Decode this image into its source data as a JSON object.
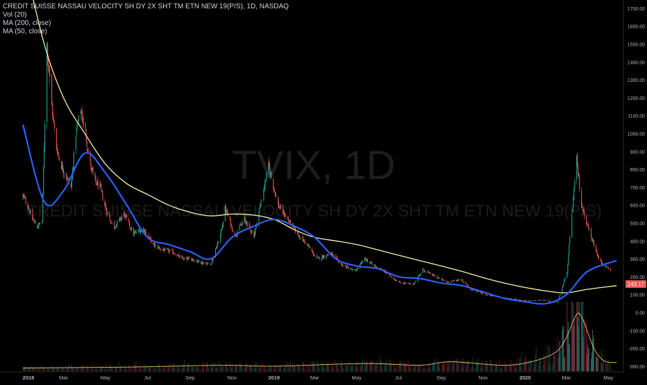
{
  "legend": {
    "title": "CREDIT SUISSE NASSAU VELOCITY SH DY 2X SHT TM ETN NEW 19(P/S), 1D, NASDAQ",
    "indicators": [
      "Vol (20)",
      "MA (200, close)",
      "MA (50, close)"
    ]
  },
  "watermark": {
    "symbol": "TVIX, 1D",
    "description": "CREDIT SUISSE NASSAU VELOCITY SH DY 2X SHT TM ETN NEW 19(P/S)"
  },
  "colors": {
    "background": "#000000",
    "up": "#26a69a",
    "down": "#ef5350",
    "ma50": "#2962ff",
    "ma200": "#fff2b0",
    "volume_ma": "#e3c26c",
    "price_tag": "#ef5350"
  },
  "chart_data": {
    "type": "candlestick",
    "price_axis": {
      "ticks": [
        "1700.00",
        "1600.00",
        "1500.00",
        "1400.00",
        "1300.00",
        "1200.00",
        "1100.00",
        "1000.00",
        "900.00",
        "800.00",
        "700.00",
        "600.00",
        "500.00",
        "400.00",
        "300.00",
        "200.00",
        "100.00",
        "0.00",
        "-100.00",
        "-200.00",
        "-300.00"
      ],
      "range": [
        -330,
        1760
      ]
    },
    "time_axis": {
      "ticks": [
        "2018",
        "Mar",
        "May",
        "Jul",
        "Sep",
        "Nov",
        "2019",
        "Mar",
        "May",
        "Jul",
        "Sep",
        "Nov",
        "2020",
        "Mar",
        "May"
      ],
      "range": [
        "2018-01-01",
        "2020-05-13"
      ]
    },
    "last_price": "143.17",
    "close_series": [
      [
        "2018-01-01",
        650
      ],
      [
        "2018-01-08",
        600
      ],
      [
        "2018-01-15",
        520
      ],
      [
        "2018-01-22",
        480
      ],
      [
        "2018-01-29",
        510
      ],
      [
        "2018-02-05",
        1500
      ],
      [
        "2018-02-12",
        1150
      ],
      [
        "2018-02-19",
        920
      ],
      [
        "2018-02-26",
        820
      ],
      [
        "2018-03-05",
        760
      ],
      [
        "2018-03-12",
        700
      ],
      [
        "2018-03-19",
        1000
      ],
      [
        "2018-03-26",
        1130
      ],
      [
        "2018-04-02",
        1000
      ],
      [
        "2018-04-09",
        820
      ],
      [
        "2018-04-16",
        730
      ],
      [
        "2018-04-23",
        700
      ],
      [
        "2018-04-30",
        600
      ],
      [
        "2018-05-07",
        520
      ],
      [
        "2018-05-14",
        480
      ],
      [
        "2018-05-28",
        550
      ],
      [
        "2018-06-11",
        440
      ],
      [
        "2018-06-25",
        470
      ],
      [
        "2018-07-09",
        380
      ],
      [
        "2018-07-23",
        350
      ],
      [
        "2018-08-06",
        340
      ],
      [
        "2018-08-20",
        300
      ],
      [
        "2018-09-03",
        300
      ],
      [
        "2018-09-17",
        280
      ],
      [
        "2018-10-01",
        270
      ],
      [
        "2018-10-15",
        430
      ],
      [
        "2018-10-22",
        580
      ],
      [
        "2018-11-05",
        430
      ],
      [
        "2018-11-19",
        520
      ],
      [
        "2018-12-03",
        430
      ],
      [
        "2018-12-10",
        560
      ],
      [
        "2018-12-24",
        820
      ],
      [
        "2019-01-07",
        600
      ],
      [
        "2019-01-21",
        520
      ],
      [
        "2019-02-04",
        440
      ],
      [
        "2019-02-18",
        380
      ],
      [
        "2019-03-04",
        300
      ],
      [
        "2019-03-25",
        330
      ],
      [
        "2019-04-08",
        270
      ],
      [
        "2019-04-29",
        230
      ],
      [
        "2019-05-13",
        300
      ],
      [
        "2019-05-27",
        260
      ],
      [
        "2019-06-10",
        230
      ],
      [
        "2019-07-01",
        170
      ],
      [
        "2019-07-22",
        155
      ],
      [
        "2019-08-05",
        240
      ],
      [
        "2019-08-19",
        210
      ],
      [
        "2019-09-09",
        170
      ],
      [
        "2019-09-30",
        185
      ],
      [
        "2019-10-14",
        130
      ],
      [
        "2019-11-04",
        100
      ],
      [
        "2019-11-25",
        85
      ],
      [
        "2019-12-16",
        75
      ],
      [
        "2020-01-06",
        65
      ],
      [
        "2020-01-27",
        70
      ],
      [
        "2020-02-17",
        55
      ],
      [
        "2020-02-24",
        140
      ],
      [
        "2020-03-02",
        230
      ],
      [
        "2020-03-09",
        550
      ],
      [
        "2020-03-16",
        850
      ],
      [
        "2020-03-23",
        600
      ],
      [
        "2020-04-06",
        420
      ],
      [
        "2020-04-20",
        280
      ],
      [
        "2020-05-04",
        230
      ],
      [
        "2020-05-13",
        143.17
      ]
    ],
    "ma50": [
      [
        "2018-01-01",
        1050
      ],
      [
        "2018-02-01",
        620
      ],
      [
        "2018-03-01",
        680
      ],
      [
        "2018-04-01",
        890
      ],
      [
        "2018-05-01",
        780
      ],
      [
        "2018-06-01",
        600
      ],
      [
        "2018-07-01",
        420
      ],
      [
        "2018-08-01",
        380
      ],
      [
        "2018-09-01",
        340
      ],
      [
        "2018-10-01",
        300
      ],
      [
        "2018-11-01",
        420
      ],
      [
        "2018-12-01",
        480
      ],
      [
        "2019-01-01",
        520
      ],
      [
        "2019-02-01",
        480
      ],
      [
        "2019-03-01",
        420
      ],
      [
        "2019-04-01",
        300
      ],
      [
        "2019-05-01",
        260
      ],
      [
        "2019-06-01",
        245
      ],
      [
        "2019-07-01",
        200
      ],
      [
        "2019-08-01",
        190
      ],
      [
        "2019-09-01",
        165
      ],
      [
        "2019-10-01",
        150
      ],
      [
        "2019-11-01",
        115
      ],
      [
        "2019-12-01",
        80
      ],
      [
        "2020-01-01",
        60
      ],
      [
        "2020-02-01",
        50
      ],
      [
        "2020-03-01",
        100
      ],
      [
        "2020-04-01",
        230
      ],
      [
        "2020-05-13",
        290
      ]
    ],
    "ma200": [
      [
        "2018-01-01",
        2000
      ],
      [
        "2018-02-01",
        1500
      ],
      [
        "2018-03-01",
        1200
      ],
      [
        "2018-04-01",
        1000
      ],
      [
        "2018-05-01",
        830
      ],
      [
        "2018-06-01",
        720
      ],
      [
        "2018-07-01",
        660
      ],
      [
        "2018-08-01",
        600
      ],
      [
        "2018-09-01",
        560
      ],
      [
        "2018-10-01",
        540
      ],
      [
        "2018-11-01",
        550
      ],
      [
        "2018-12-01",
        545
      ],
      [
        "2019-01-01",
        520
      ],
      [
        "2019-02-01",
        460
      ],
      [
        "2019-03-01",
        420
      ],
      [
        "2019-04-01",
        400
      ],
      [
        "2019-05-01",
        380
      ],
      [
        "2019-06-01",
        350
      ],
      [
        "2019-07-01",
        320
      ],
      [
        "2019-08-01",
        290
      ],
      [
        "2019-09-01",
        260
      ],
      [
        "2019-10-01",
        230
      ],
      [
        "2019-11-01",
        195
      ],
      [
        "2019-12-01",
        165
      ],
      [
        "2020-01-01",
        140
      ],
      [
        "2020-02-01",
        120
      ],
      [
        "2020-03-01",
        110
      ],
      [
        "2020-04-01",
        130
      ],
      [
        "2020-05-13",
        150
      ]
    ],
    "volume_ma_curve": [
      [
        "2018-01-01",
        -310
      ],
      [
        "2018-06-01",
        -305
      ],
      [
        "2018-10-15",
        -295
      ],
      [
        "2019-01-01",
        -300
      ],
      [
        "2019-05-13",
        -285
      ],
      [
        "2019-08-01",
        -295
      ],
      [
        "2019-09-15",
        -275
      ],
      [
        "2019-12-01",
        -295
      ],
      [
        "2020-01-15",
        -270
      ],
      [
        "2020-02-15",
        -220
      ],
      [
        "2020-03-01",
        -140
      ],
      [
        "2020-03-16",
        -10
      ],
      [
        "2020-03-25",
        -40
      ],
      [
        "2020-04-10",
        -200
      ],
      [
        "2020-04-25",
        -270
      ],
      [
        "2020-05-13",
        -280
      ]
    ],
    "volume_bars": {
      "min": -330,
      "peaks": [
        [
          "2018-02-06",
          -305
        ],
        [
          "2018-10-24",
          -295
        ],
        [
          "2019-05-13",
          -285
        ],
        [
          "2019-09-01",
          -280
        ],
        [
          "2020-02-15",
          -200
        ],
        [
          "2020-03-02",
          -120
        ],
        [
          "2020-03-16",
          70
        ],
        [
          "2020-03-23",
          30
        ],
        [
          "2020-04-01",
          -200
        ],
        [
          "2020-05-01",
          -260
        ]
      ]
    }
  }
}
